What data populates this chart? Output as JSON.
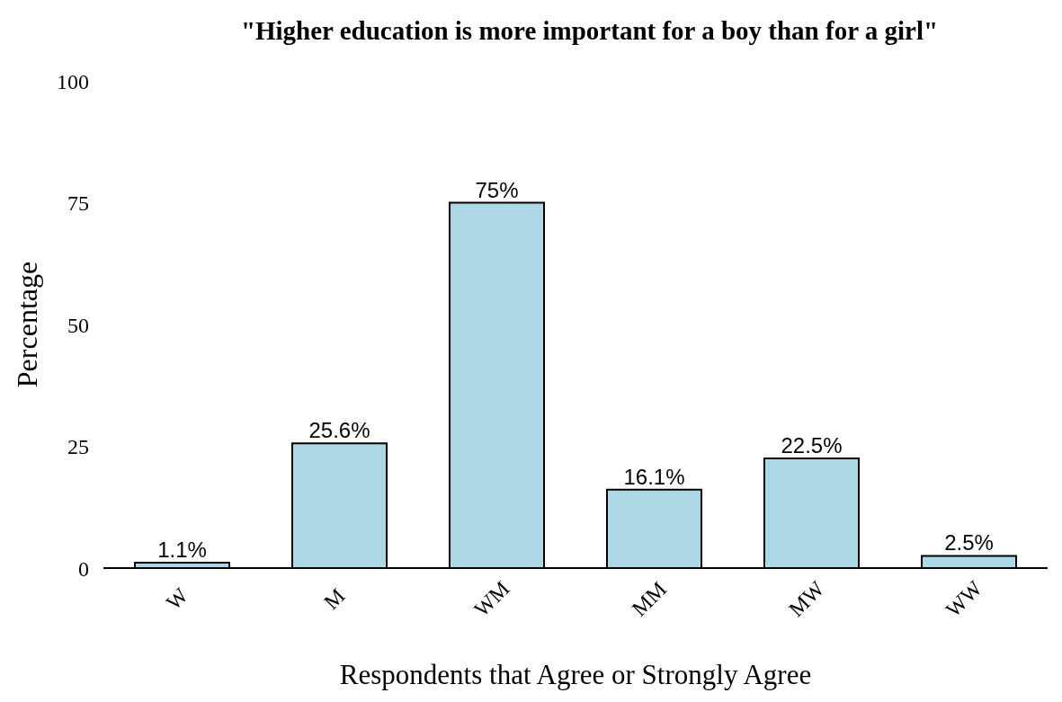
{
  "chart_data": {
    "type": "bar",
    "title": "\"Higher education is more important for a boy than for a girl\"",
    "xlabel": "Respondents that Agree or Strongly Agree",
    "ylabel": "Percentage",
    "categories": [
      "W",
      "M",
      "WM",
      "MM",
      "MW",
      "WW"
    ],
    "values": [
      1.1,
      25.6,
      75,
      16.1,
      22.5,
      2.5
    ],
    "value_labels": [
      "1.1%",
      "25.6%",
      "75%",
      "16.1%",
      "22.5%",
      "2.5%"
    ],
    "color": "#add8e6",
    "ylim": [
      0,
      100
    ],
    "yticks": [
      0,
      25,
      50,
      75,
      100
    ]
  }
}
